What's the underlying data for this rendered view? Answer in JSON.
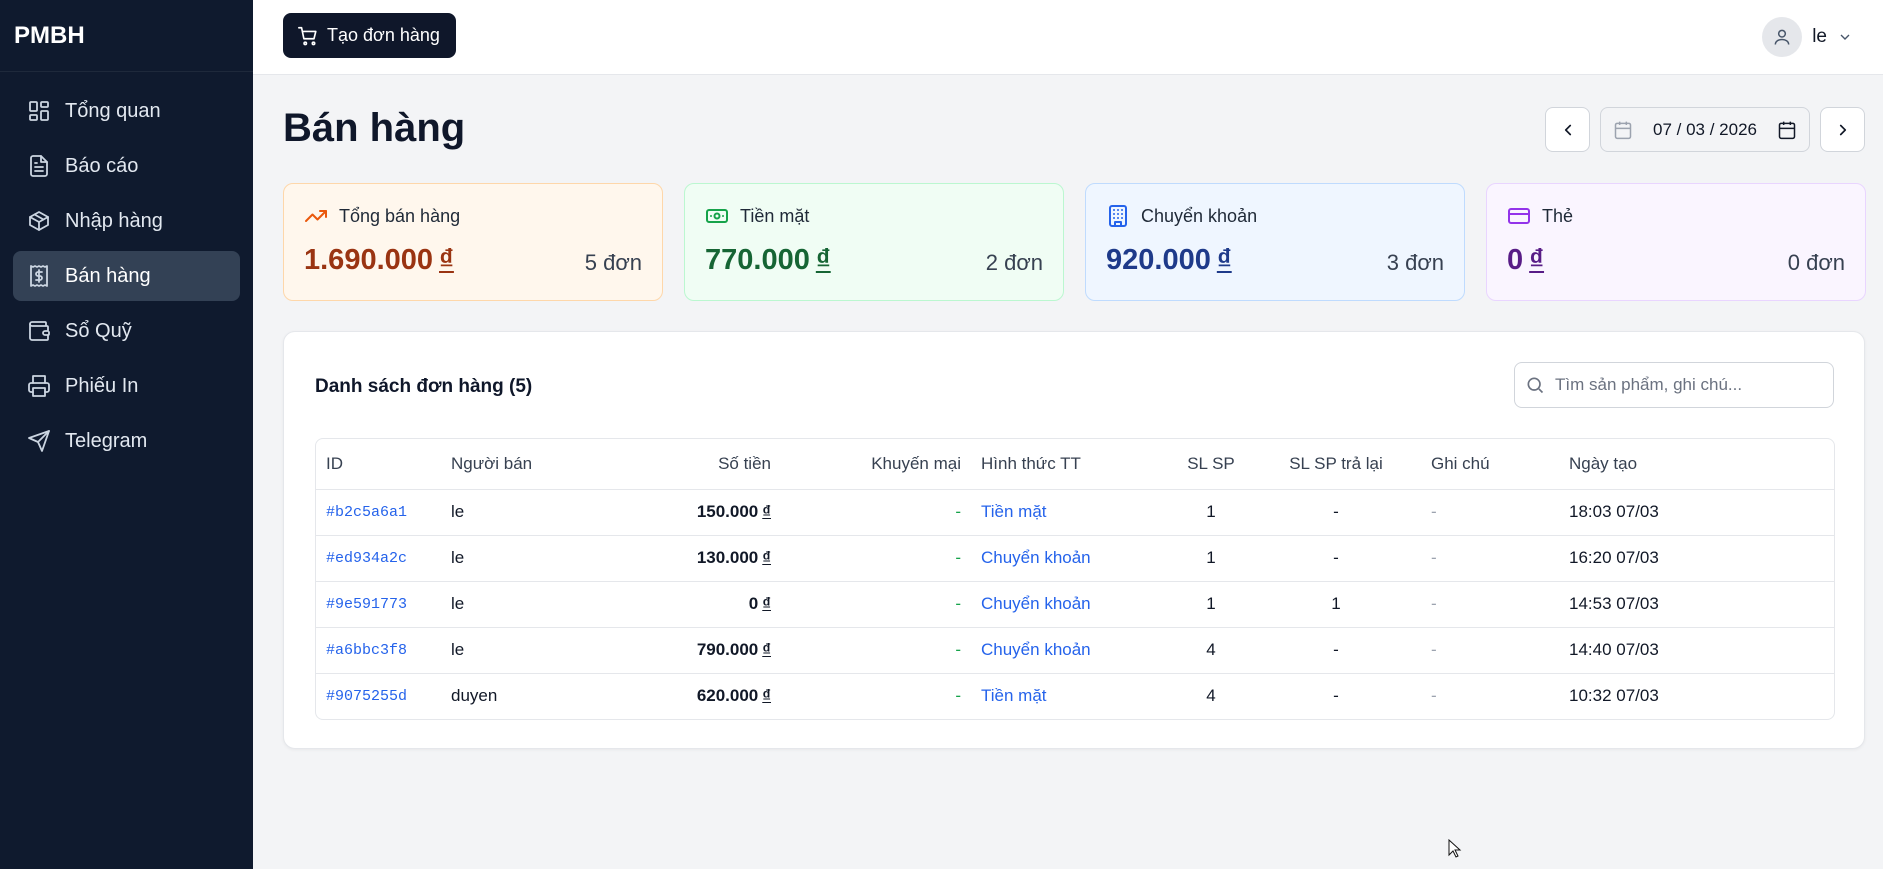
{
  "app": {
    "brand": "PMBH"
  },
  "sidebar": {
    "items": [
      {
        "label": "Tổng quan",
        "icon": "dashboard-icon"
      },
      {
        "label": "Báo cáo",
        "icon": "document-icon"
      },
      {
        "label": "Nhập hàng",
        "icon": "package-icon"
      },
      {
        "label": "Bán hàng",
        "icon": "dollar-receipt-icon",
        "active": true
      },
      {
        "label": "Sổ Quỹ",
        "icon": "wallet-icon"
      },
      {
        "label": "Phiếu In",
        "icon": "printer-icon"
      },
      {
        "label": "Telegram",
        "icon": "send-icon"
      }
    ]
  },
  "topbar": {
    "create_label": "Tạo đơn hàng",
    "user_name": "le"
  },
  "page": {
    "title": "Bán hàng",
    "date_value": "07 / 03 / 2026"
  },
  "cards": [
    {
      "label": "Tổng bán hàng",
      "amount": "1.690.000",
      "currency": "₫",
      "count": "5 đơn",
      "color": "#ea580c"
    },
    {
      "label": "Tiền mặt",
      "amount": "770.000",
      "currency": "₫",
      "count": "2 đơn",
      "color": "#16a34a"
    },
    {
      "label": "Chuyển khoản",
      "amount": "920.000",
      "currency": "₫",
      "count": "3 đơn",
      "color": "#2563eb"
    },
    {
      "label": "Thẻ",
      "amount": "0",
      "currency": "₫",
      "count": "0 đơn",
      "color": "#9333ea"
    }
  ],
  "orders": {
    "title": "Danh sách đơn hàng (5)",
    "search_placeholder": "Tìm sản phẩm, ghi chú...",
    "columns": [
      "ID",
      "Người bán",
      "Số tiền",
      "Khuyến mại",
      "Hình thức TT",
      "SL SP",
      "SL SP trả lại",
      "Ghi chú",
      "Ngày tạo"
    ],
    "rows": [
      {
        "id": "#b2c5a6a1",
        "seller": "le",
        "amount": "150.000",
        "currency": "₫",
        "promo": "-",
        "payment": "Tiền mặt",
        "qty": "1",
        "returned": "-",
        "note": "-",
        "created": "18:03 07/03"
      },
      {
        "id": "#ed934a2c",
        "seller": "le",
        "amount": "130.000",
        "currency": "₫",
        "promo": "-",
        "payment": "Chuyển khoản",
        "qty": "1",
        "returned": "-",
        "note": "-",
        "created": "16:20 07/03"
      },
      {
        "id": "#9e591773",
        "seller": "le",
        "amount": "0",
        "currency": "₫",
        "promo": "-",
        "payment": "Chuyển khoản",
        "qty": "1",
        "returned": "1",
        "note": "-",
        "created": "14:53 07/03"
      },
      {
        "id": "#a6bbc3f8",
        "seller": "le",
        "amount": "790.000",
        "currency": "₫",
        "promo": "-",
        "payment": "Chuyển khoản",
        "qty": "4",
        "returned": "-",
        "note": "-",
        "created": "14:40 07/03"
      },
      {
        "id": "#9075255d",
        "seller": "duyen",
        "amount": "620.000",
        "currency": "₫",
        "promo": "-",
        "payment": "Tiền mặt",
        "qty": "4",
        "returned": "-",
        "note": "-",
        "created": "10:32 07/03"
      }
    ]
  }
}
